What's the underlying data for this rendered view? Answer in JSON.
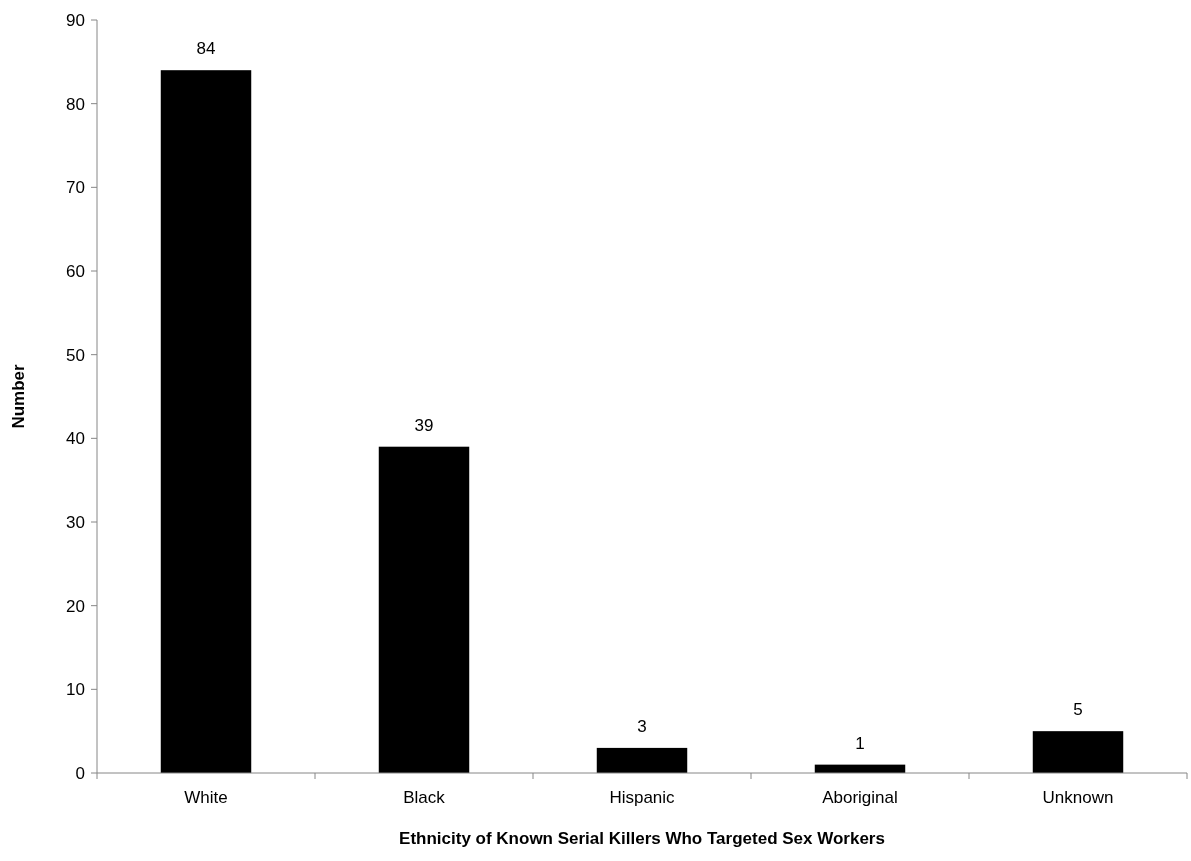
{
  "chart_data": {
    "type": "bar",
    "xlabel": "Ethnicity of Known Serial Killers Who Targeted Sex Workers",
    "ylabel": "Number",
    "categories": [
      "White",
      "Black",
      "Hispanic",
      "Aboriginal",
      "Unknown"
    ],
    "values": [
      84,
      39,
      3,
      1,
      5
    ],
    "color": "#000000",
    "ylim": [
      0,
      90
    ],
    "yticks": [
      0,
      10,
      20,
      30,
      40,
      50,
      60,
      70,
      80,
      90
    ],
    "data_labels": true,
    "grid": false
  }
}
